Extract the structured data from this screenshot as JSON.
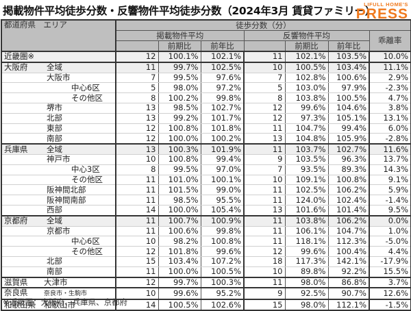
{
  "title": "掲載物件平均徒歩分数・反響物件平均徒歩分数（2024年3月 賃貸ファミリー）",
  "logo": {
    "top": "LIFULL HOME'S",
    "bottom": "PRESS",
    "color": "#f07a1e"
  },
  "header": {
    "region": "都道府県　エリア",
    "walk_minutes": "徒歩分数（分）",
    "listed_avg": "掲載物件平均",
    "inquiry_avg": "反響物件平均",
    "divergence": "乖離率",
    "qoq": "前期比",
    "yoy": "前年比"
  },
  "rows": [
    {
      "pref": "近畿圏※",
      "area": "",
      "level": 0,
      "l_min": "12",
      "l_qoq": "100.1%",
      "l_yoy": "102.1%",
      "i_min": "11",
      "i_qoq": "102.1%",
      "i_yoy": "103.5%",
      "div": "10.0%"
    },
    {
      "pref": "大阪府",
      "area": "全域",
      "level": 0,
      "l_min": "11",
      "l_qoq": "99.7%",
      "l_yoy": "102.5%",
      "i_min": "10",
      "i_qoq": "100.5%",
      "i_yoy": "103.4%",
      "div": "11.1%"
    },
    {
      "pref": "",
      "area": "大阪市",
      "level": 1,
      "l_min": "7",
      "l_qoq": "99.5%",
      "l_yoy": "97.6%",
      "i_min": "7",
      "i_qoq": "102.8%",
      "i_yoy": "100.6%",
      "div": "2.9%"
    },
    {
      "pref": "",
      "area": "中心6区",
      "level": 2,
      "l_min": "5",
      "l_qoq": "98.0%",
      "l_yoy": "97.2%",
      "i_min": "5",
      "i_qoq": "103.0%",
      "i_yoy": "97.9%",
      "div": "-2.3%"
    },
    {
      "pref": "",
      "area": "その他区",
      "level": 2,
      "l_min": "8",
      "l_qoq": "100.2%",
      "l_yoy": "99.8%",
      "i_min": "8",
      "i_qoq": "103.8%",
      "i_yoy": "100.5%",
      "div": "4.7%"
    },
    {
      "pref": "",
      "area": "堺市",
      "level": 1,
      "l_min": "13",
      "l_qoq": "98.5%",
      "l_yoy": "102.7%",
      "i_min": "12",
      "i_qoq": "99.6%",
      "i_yoy": "104.6%",
      "div": "3.8%"
    },
    {
      "pref": "",
      "area": "北部",
      "level": 1,
      "l_min": "13",
      "l_qoq": "99.2%",
      "l_yoy": "101.7%",
      "i_min": "12",
      "i_qoq": "97.3%",
      "i_yoy": "105.1%",
      "div": "13.1%"
    },
    {
      "pref": "",
      "area": "東部",
      "level": 1,
      "l_min": "12",
      "l_qoq": "100.8%",
      "l_yoy": "101.8%",
      "i_min": "11",
      "i_qoq": "104.7%",
      "i_yoy": "99.4%",
      "div": "6.0%"
    },
    {
      "pref": "",
      "area": "南部",
      "level": 1,
      "l_min": "12",
      "l_qoq": "100.0%",
      "l_yoy": "100.2%",
      "i_min": "13",
      "i_qoq": "104.8%",
      "i_yoy": "105.9%",
      "div": "-2.8%"
    },
    {
      "pref": "兵庫県",
      "area": "全域",
      "level": 0,
      "l_min": "13",
      "l_qoq": "100.3%",
      "l_yoy": "101.9%",
      "i_min": "11",
      "i_qoq": "103.7%",
      "i_yoy": "102.7%",
      "div": "11.6%"
    },
    {
      "pref": "",
      "area": "神戸市",
      "level": 1,
      "l_min": "10",
      "l_qoq": "100.8%",
      "l_yoy": "99.4%",
      "i_min": "9",
      "i_qoq": "103.5%",
      "i_yoy": "96.3%",
      "div": "13.7%"
    },
    {
      "pref": "",
      "area": "中心3区",
      "level": 2,
      "l_min": "8",
      "l_qoq": "99.5%",
      "l_yoy": "97.0%",
      "i_min": "7",
      "i_qoq": "93.5%",
      "i_yoy": "89.3%",
      "div": "14.3%"
    },
    {
      "pref": "",
      "area": "その他区",
      "level": 2,
      "l_min": "11",
      "l_qoq": "101.0%",
      "l_yoy": "100.1%",
      "i_min": "10",
      "i_qoq": "109.1%",
      "i_yoy": "100.8%",
      "div": "9.1%"
    },
    {
      "pref": "",
      "area": "阪神間北部",
      "level": 1,
      "l_min": "11",
      "l_qoq": "101.5%",
      "l_yoy": "99.0%",
      "i_min": "11",
      "i_qoq": "102.5%",
      "i_yoy": "106.2%",
      "div": "5.9%"
    },
    {
      "pref": "",
      "area": "阪神間南部",
      "level": 1,
      "l_min": "11",
      "l_qoq": "98.5%",
      "l_yoy": "95.5%",
      "i_min": "11",
      "i_qoq": "124.0%",
      "i_yoy": "102.4%",
      "div": "-1.4%"
    },
    {
      "pref": "",
      "area": "西部",
      "level": 1,
      "l_min": "14",
      "l_qoq": "100.0%",
      "l_yoy": "105.4%",
      "i_min": "13",
      "i_qoq": "101.6%",
      "i_yoy": "101.4%",
      "div": "9.5%"
    },
    {
      "pref": "京都府",
      "area": "全域",
      "level": 0,
      "l_min": "11",
      "l_qoq": "100.7%",
      "l_yoy": "100.9%",
      "i_min": "11",
      "i_qoq": "103.8%",
      "i_yoy": "106.2%",
      "div": "0.0%"
    },
    {
      "pref": "",
      "area": "京都市",
      "level": 1,
      "l_min": "11",
      "l_qoq": "100.6%",
      "l_yoy": "99.8%",
      "i_min": "11",
      "i_qoq": "106.1%",
      "i_yoy": "104.7%",
      "div": "1.0%"
    },
    {
      "pref": "",
      "area": "中心6区",
      "level": 2,
      "l_min": "10",
      "l_qoq": "98.2%",
      "l_yoy": "100.8%",
      "i_min": "11",
      "i_qoq": "118.1%",
      "i_yoy": "112.3%",
      "div": "-5.0%"
    },
    {
      "pref": "",
      "area": "その他区",
      "level": 2,
      "l_min": "12",
      "l_qoq": "101.8%",
      "l_yoy": "99.6%",
      "i_min": "12",
      "i_qoq": "99.6%",
      "i_yoy": "100.4%",
      "div": "4.4%"
    },
    {
      "pref": "",
      "area": "北部",
      "level": 1,
      "l_min": "15",
      "l_qoq": "103.4%",
      "l_yoy": "107.2%",
      "i_min": "18",
      "i_qoq": "117.3%",
      "i_yoy": "142.1%",
      "div": "-17.9%"
    },
    {
      "pref": "",
      "area": "南部",
      "level": 1,
      "l_min": "11",
      "l_qoq": "100.0%",
      "l_yoy": "100.5%",
      "i_min": "10",
      "i_qoq": "89.8%",
      "i_yoy": "92.2%",
      "div": "15.5%"
    },
    {
      "pref": "滋賀県",
      "area": "大津市",
      "level": 1,
      "l_min": "12",
      "l_qoq": "99.7%",
      "l_yoy": "100.3%",
      "i_min": "11",
      "i_qoq": "98.0%",
      "i_yoy": "86.8%",
      "div": "3.7%"
    },
    {
      "pref": "奈良県",
      "area": "奈良市・生駒市",
      "level": 1,
      "l_min": "10",
      "l_qoq": "99.6%",
      "l_yoy": "95.2%",
      "i_min": "9",
      "i_qoq": "92.5%",
      "i_yoy": "90.7%",
      "div": "12.6%"
    },
    {
      "pref": "和歌山県",
      "area": "和歌山市",
      "level": 1,
      "l_min": "14",
      "l_qoq": "100.5%",
      "l_yoy": "102.6%",
      "i_min": "15",
      "i_qoq": "98.0%",
      "i_yoy": "112.1%",
      "div": "-1.5%"
    }
  ],
  "footnote": "※近畿圏：大阪府、兵庫県、京都府"
}
